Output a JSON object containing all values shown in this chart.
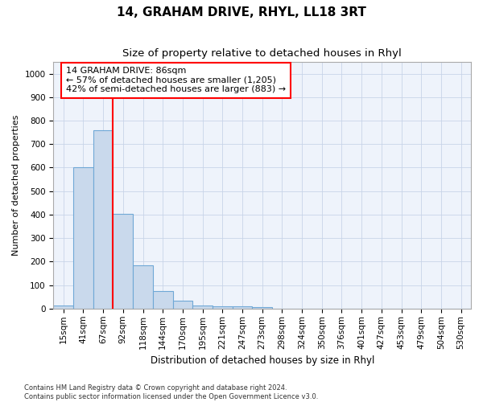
{
  "title": "14, GRAHAM DRIVE, RHYL, LL18 3RT",
  "subtitle": "Size of property relative to detached houses in Rhyl",
  "xlabel": "Distribution of detached houses by size in Rhyl",
  "ylabel": "Number of detached properties",
  "footer_line1": "Contains HM Land Registry data © Crown copyright and database right 2024.",
  "footer_line2": "Contains public sector information licensed under the Open Government Licence v3.0.",
  "bin_labels": [
    "15sqm",
    "41sqm",
    "67sqm",
    "92sqm",
    "118sqm",
    "144sqm",
    "170sqm",
    "195sqm",
    "221sqm",
    "247sqm",
    "273sqm",
    "298sqm",
    "324sqm",
    "350sqm",
    "376sqm",
    "401sqm",
    "427sqm",
    "453sqm",
    "479sqm",
    "504sqm",
    "530sqm"
  ],
  "bar_values": [
    15,
    600,
    760,
    405,
    185,
    75,
    35,
    15,
    10,
    10,
    5,
    0,
    0,
    0,
    0,
    0,
    0,
    0,
    0,
    0,
    0
  ],
  "bar_color": "#c9d9ec",
  "bar_edge_color": "#6fa8d6",
  "vline_x_index": 2,
  "vline_side": "right",
  "vline_color": "red",
  "annotation_text": "14 GRAHAM DRIVE: 86sqm\n← 57% of detached houses are smaller (1,205)\n42% of semi-detached houses are larger (883) →",
  "annotation_box_color": "white",
  "annotation_box_edge_color": "red",
  "ylim": [
    0,
    1050
  ],
  "yticks": [
    0,
    100,
    200,
    300,
    400,
    500,
    600,
    700,
    800,
    900,
    1000
  ],
  "background_color": "#eef3fb",
  "grid_color": "#c8d4e8",
  "title_fontsize": 11,
  "subtitle_fontsize": 9.5,
  "xlabel_fontsize": 8.5,
  "ylabel_fontsize": 8,
  "tick_fontsize": 7.5,
  "annotation_fontsize": 8
}
